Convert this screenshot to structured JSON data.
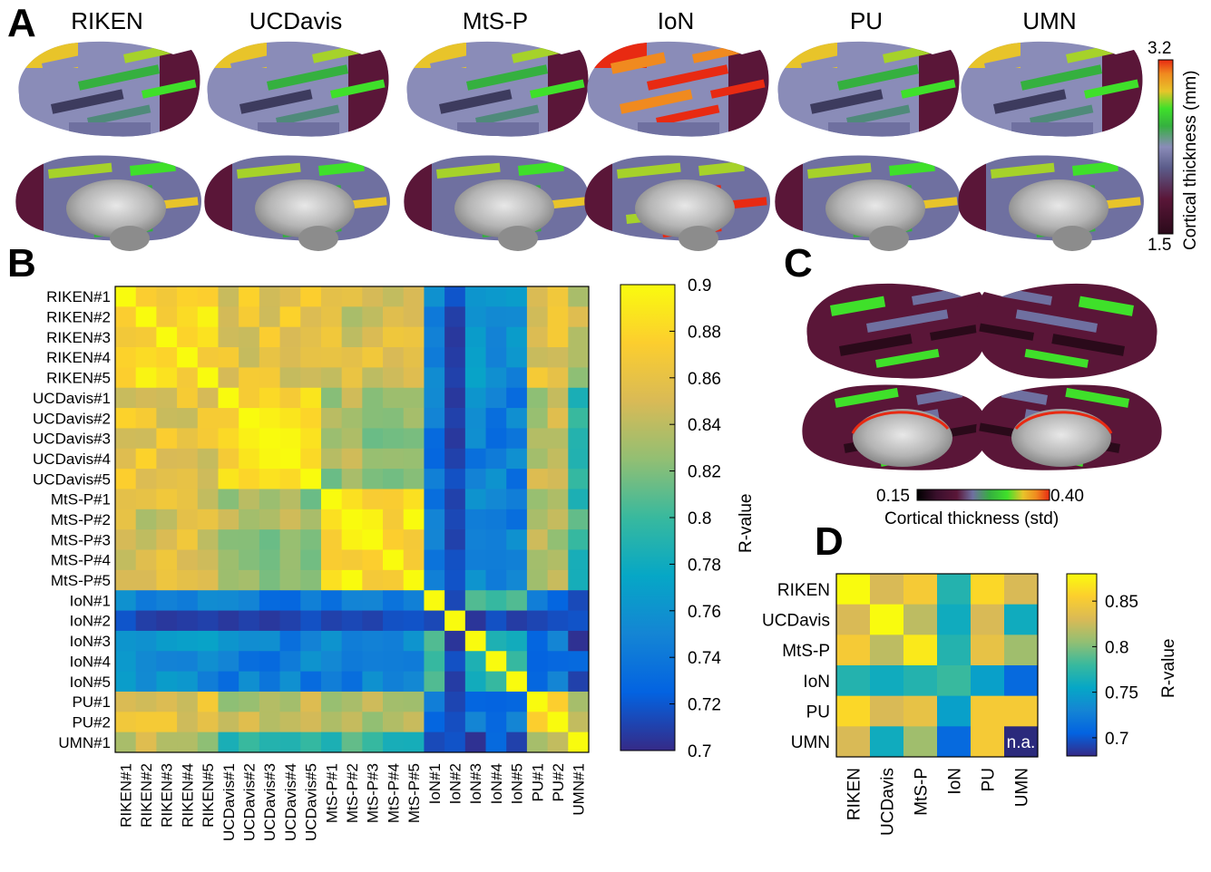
{
  "panel_a": {
    "letter": "A",
    "sites": [
      "RIKEN",
      "UCDavis",
      "MtS-P",
      "IoN",
      "PU",
      "UMN"
    ],
    "colorbar": {
      "max": "3.2",
      "min": "1.5",
      "label": "Cortical thickness (mm)"
    }
  },
  "panel_c": {
    "letter": "C",
    "colorbar": {
      "min": "0.15",
      "max": "0.40",
      "label": "Cortical thickness (std)"
    }
  },
  "colors": {
    "thickness_scale": [
      "#2a0a1a",
      "#5a1638",
      "#3d3b5e",
      "#6f70a0",
      "#8a8cb8",
      "#4f8a7a",
      "#35b03f",
      "#3fe02a",
      "#a6d22a",
      "#e8c42a",
      "#f08a1f",
      "#e82a12"
    ],
    "parula": [
      "#352a87",
      "#0363e1",
      "#1485d4",
      "#06a7c6",
      "#38b99e",
      "#92bf73",
      "#d9ba56",
      "#fcce2e",
      "#f9fb0e"
    ],
    "na_cell": "#2b2a7c"
  },
  "chart_data": [
    {
      "type": "heatmap",
      "panel": "B",
      "title": "",
      "rows": [
        "RIKEN#1",
        "RIKEN#2",
        "RIKEN#3",
        "RIKEN#4",
        "RIKEN#5",
        "UCDavis#1",
        "UCDavis#2",
        "UCDavis#3",
        "UCDavis#4",
        "UCDavis#5",
        "MtS-P#1",
        "MtS-P#2",
        "MtS-P#3",
        "MtS-P#4",
        "MtS-P#5",
        "IoN#1",
        "IoN#2",
        "IoN#3",
        "IoN#4",
        "IoN#5",
        "PU#1",
        "PU#2",
        "UMN#1"
      ],
      "columns": [
        "RIKEN#1",
        "RIKEN#2",
        "RIKEN#3",
        "RIKEN#4",
        "RIKEN#5",
        "UCDavis#1",
        "UCDavis#2",
        "UCDavis#3",
        "UCDavis#4",
        "UCDavis#5",
        "MtS-P#1",
        "MtS-P#2",
        "MtS-P#3",
        "MtS-P#4",
        "MtS-P#5",
        "IoN#1",
        "IoN#2",
        "IoN#3",
        "IoN#4",
        "IoN#5",
        "PU#1",
        "PU#2",
        "UMN#1"
      ],
      "group_sizes": [
        5,
        5,
        5,
        5,
        2,
        1
      ],
      "values": [],
      "values_note_for_script_only": "",
      "colorbar": {
        "min": 0.7,
        "max": 0.9,
        "ticks": [
          "0.9",
          "0.88",
          "0.86",
          "0.84",
          "0.82",
          "0.8",
          "0.78",
          "0.76",
          "0.74",
          "0.72",
          "0.7"
        ],
        "label": "R-value"
      }
    },
    {
      "type": "heatmap",
      "panel": "D",
      "title": "",
      "rows": [
        "RIKEN",
        "UCDavis",
        "MtS-P",
        "IoN",
        "PU",
        "UMN"
      ],
      "columns": [
        "RIKEN",
        "UCDavis",
        "MtS-P",
        "IoN",
        "PU",
        "UMN"
      ],
      "values": [
        [
          0.88,
          0.83,
          0.85,
          0.77,
          0.86,
          0.83
        ],
        [
          0.83,
          0.88,
          0.82,
          0.76,
          0.83,
          0.76
        ],
        [
          0.85,
          0.82,
          0.87,
          0.77,
          0.84,
          0.81
        ],
        [
          0.77,
          0.76,
          0.77,
          0.78,
          0.75,
          0.71
        ],
        [
          0.86,
          0.83,
          0.84,
          0.75,
          0.85,
          0.85
        ],
        [
          0.83,
          0.76,
          0.81,
          0.71,
          0.85,
          null
        ]
      ],
      "na_label": "n.a.",
      "colorbar": {
        "min": 0.68,
        "max": 0.88,
        "ticks": [
          "0.85",
          "0.8",
          "0.75",
          "0.7"
        ],
        "label": "R-value"
      }
    }
  ],
  "labels": {
    "panel_b": "B",
    "panel_d": "D"
  }
}
